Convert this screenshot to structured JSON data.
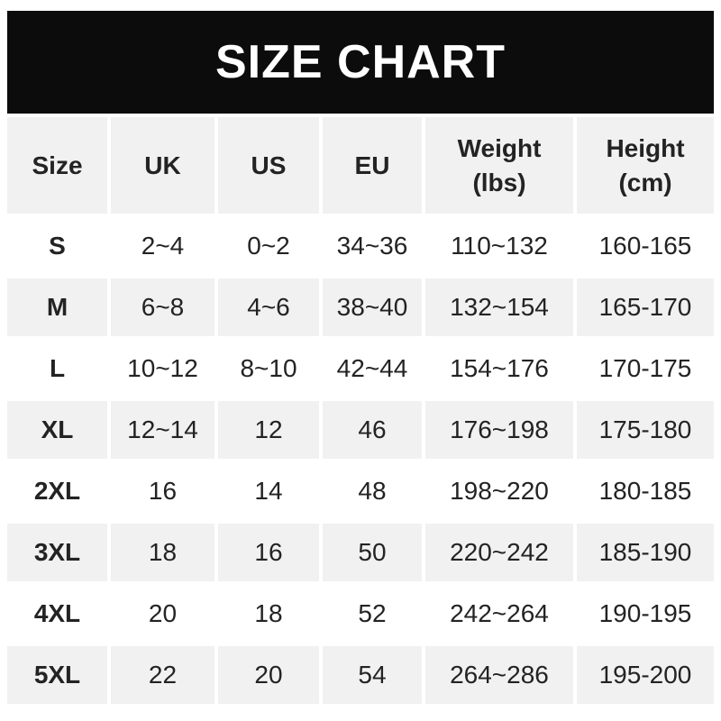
{
  "banner": {
    "title": "SIZE CHART"
  },
  "header": {
    "cells": [
      {
        "label": "Size",
        "sub": ""
      },
      {
        "label": "UK",
        "sub": ""
      },
      {
        "label": "US",
        "sub": ""
      },
      {
        "label": "EU",
        "sub": ""
      },
      {
        "label": "Weight",
        "sub": "(lbs)"
      },
      {
        "label": "Height",
        "sub": "(cm)"
      }
    ]
  },
  "chart_data": {
    "type": "table",
    "title": "SIZE CHART",
    "columns": [
      "Size",
      "UK",
      "US",
      "EU",
      "Weight (lbs)",
      "Height (cm)"
    ],
    "rows": [
      [
        "S",
        "2~4",
        "0~2",
        "34~36",
        "110~132",
        "160-165"
      ],
      [
        "M",
        "6~8",
        "4~6",
        "38~40",
        "132~154",
        "165-170"
      ],
      [
        "L",
        "10~12",
        "8~10",
        "42~44",
        "154~176",
        "170-175"
      ],
      [
        "XL",
        "12~14",
        "12",
        "46",
        "176~198",
        "175-180"
      ],
      [
        "2XL",
        "16",
        "14",
        "48",
        "198~220",
        "180-185"
      ],
      [
        "3XL",
        "18",
        "16",
        "50",
        "220~242",
        "185-190"
      ],
      [
        "4XL",
        "20",
        "18",
        "52",
        "242~264",
        "190-195"
      ],
      [
        "5XL",
        "22",
        "20",
        "54",
        "264~286",
        "195-200"
      ]
    ]
  },
  "colors": {
    "banner_bg": "#0c0c0c",
    "banner_text": "#ffffff",
    "alt_row_bg": "#f1f1f1",
    "text": "#232323",
    "page_bg": "#ffffff"
  }
}
